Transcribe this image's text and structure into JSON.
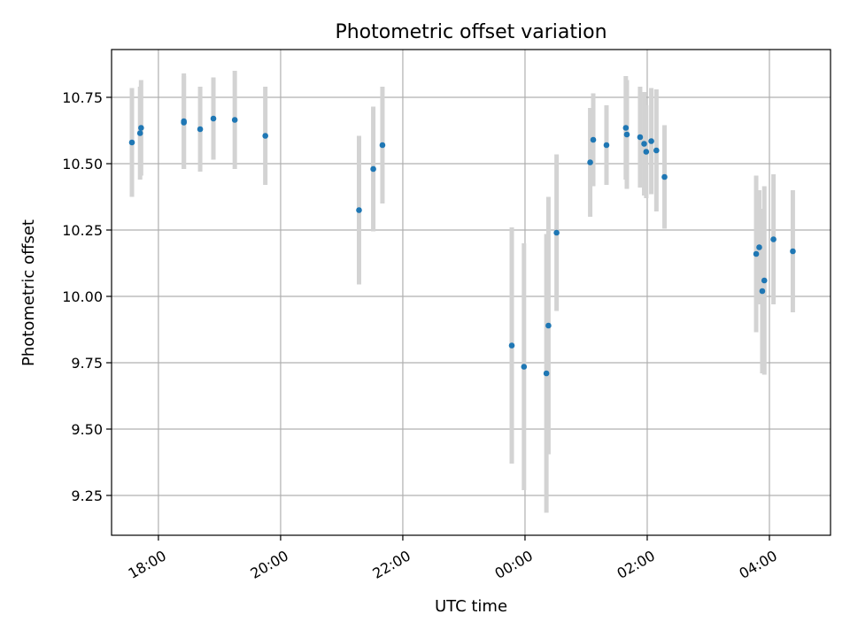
{
  "chart_data": {
    "type": "scatter",
    "title": "Photometric offset variation",
    "xlabel": "UTC time",
    "ylabel": "Photometric offset",
    "x_unit": "UTC clock time (17:00 day 1 to 05:00 day 2)",
    "xlim": [
      "17:14",
      "05:00"
    ],
    "ylim": [
      9.1,
      10.93
    ],
    "x_ticks": [
      "18:00",
      "20:00",
      "22:00",
      "00:00",
      "02:00",
      "04:00"
    ],
    "y_ticks": [
      9.25,
      9.5,
      9.75,
      10.0,
      10.25,
      10.5,
      10.75
    ],
    "y_tick_labels": [
      "9.25",
      "9.50",
      "9.75",
      "10.00",
      "10.25",
      "10.50",
      "10.75"
    ],
    "grid": true,
    "colors": {
      "point": "#1f77b4",
      "errorbar": "#d3d3d3"
    },
    "series": [
      {
        "points": [
          {
            "t": "17:34",
            "y": 10.58,
            "err": 0.205
          },
          {
            "t": "17:42",
            "y": 10.615,
            "err": 0.175
          },
          {
            "t": "17:43",
            "y": 10.635,
            "err": 0.18
          },
          {
            "t": "18:25",
            "y": 10.655,
            "err": 0.175
          },
          {
            "t": "18:25",
            "y": 10.66,
            "err": 0.18
          },
          {
            "t": "18:41",
            "y": 10.63,
            "err": 0.16
          },
          {
            "t": "18:54",
            "y": 10.67,
            "err": 0.155
          },
          {
            "t": "19:15",
            "y": 10.665,
            "err": 0.185
          },
          {
            "t": "19:45",
            "y": 10.605,
            "err": 0.185
          },
          {
            "t": "21:17",
            "y": 10.325,
            "err": 0.28
          },
          {
            "t": "21:31",
            "y": 10.48,
            "err": 0.235
          },
          {
            "t": "21:40",
            "y": 10.57,
            "err": 0.22
          },
          {
            "t": "23:47",
            "y": 9.815,
            "err": 0.445
          },
          {
            "t": "23:59",
            "y": 9.735,
            "err": 0.465
          },
          {
            "t": "00:21",
            "y": 9.71,
            "err": 0.525
          },
          {
            "t": "00:23",
            "y": 9.89,
            "err": 0.485
          },
          {
            "t": "00:31",
            "y": 10.24,
            "err": 0.295
          },
          {
            "t": "01:04",
            "y": 10.505,
            "err": 0.205
          },
          {
            "t": "01:07",
            "y": 10.59,
            "err": 0.175
          },
          {
            "t": "01:20",
            "y": 10.57,
            "err": 0.15
          },
          {
            "t": "01:39",
            "y": 10.635,
            "err": 0.195
          },
          {
            "t": "01:40",
            "y": 10.61,
            "err": 0.205
          },
          {
            "t": "01:53",
            "y": 10.6,
            "err": 0.19
          },
          {
            "t": "01:57",
            "y": 10.575,
            "err": 0.195
          },
          {
            "t": "01:59",
            "y": 10.545,
            "err": 0.175
          },
          {
            "t": "02:04",
            "y": 10.585,
            "err": 0.2
          },
          {
            "t": "02:09",
            "y": 10.55,
            "err": 0.23
          },
          {
            "t": "02:17",
            "y": 10.45,
            "err": 0.195
          },
          {
            "t": "03:47",
            "y": 10.16,
            "err": 0.295
          },
          {
            "t": "03:50",
            "y": 10.185,
            "err": 0.215
          },
          {
            "t": "03:53",
            "y": 10.02,
            "err": 0.31
          },
          {
            "t": "03:55",
            "y": 10.06,
            "err": 0.355
          },
          {
            "t": "04:04",
            "y": 10.215,
            "err": 0.245
          },
          {
            "t": "04:23",
            "y": 10.17,
            "err": 0.23
          }
        ]
      }
    ]
  }
}
